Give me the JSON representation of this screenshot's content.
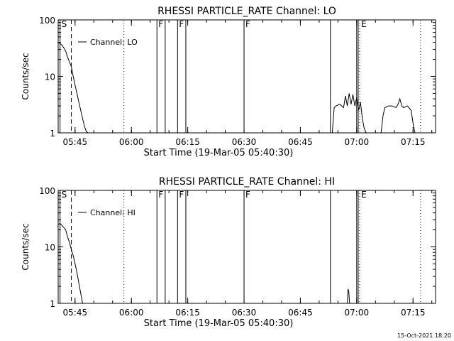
{
  "footer": {
    "timestamp": "15-Oct-2021 18:20"
  },
  "chart_data": [
    {
      "type": "line",
      "title": "RHESSI PARTICLE_RATE Channel: LO",
      "xlabel": "Start Time (19-Mar-05 05:40:30)",
      "ylabel": "Counts/sec",
      "yscale": "log",
      "ylim": [
        1,
        100
      ],
      "xlim": [
        "05:40:30",
        "07:21:00"
      ],
      "x_unit": "minutes after 05:40:30",
      "xticks": [
        "05:45",
        "06:00",
        "06:15",
        "06:30",
        "06:45",
        "07:00",
        "07:15"
      ],
      "yticks": [
        "1",
        "10",
        "100"
      ],
      "legend": "Channel: LO",
      "series": [
        {
          "name": "Channel: LO",
          "x": [
            0,
            0.5,
            1,
            1.5,
            2,
            2.5,
            3,
            3.5,
            4,
            4.5,
            5,
            5.5,
            6,
            6.5,
            7,
            7.5,
            8
          ],
          "y": [
            40,
            38,
            36,
            32,
            28,
            22,
            18,
            15,
            10,
            7,
            5,
            3.5,
            2.5,
            1.8,
            1.3,
            1.05,
            1
          ]
        },
        {
          "name": "Channel: LO",
          "x": [
            73,
            73.5,
            74,
            75,
            76,
            76.5,
            77,
            77.5,
            78,
            78.5,
            79,
            79.5,
            80,
            80.5,
            81,
            81.5,
            82
          ],
          "y": [
            1,
            2.8,
            3,
            3.2,
            2.8,
            4.5,
            3,
            5,
            3.2,
            4.8,
            3,
            4.2,
            2.5,
            3.5,
            1.8,
            1.2,
            1
          ]
        },
        {
          "name": "Channel: LO",
          "x": [
            86,
            86.5,
            87,
            88,
            89,
            90,
            90.5,
            91,
            91.5,
            92,
            93,
            94,
            94.5,
            95
          ],
          "y": [
            1,
            2,
            2.8,
            3,
            3,
            2.8,
            3.2,
            4,
            3,
            2.8,
            3,
            2.5,
            1.5,
            1
          ]
        }
      ],
      "markers": [
        {
          "label": "S",
          "x": 0.5,
          "style": "solid"
        },
        {
          "label": "",
          "x": 3.5,
          "style": "dashed"
        },
        {
          "label": "",
          "x": 17.5,
          "style": "dotted"
        },
        {
          "label": "F",
          "x": 26.3,
          "style": "solid"
        },
        {
          "label": "",
          "x": 28.5,
          "style": "solid"
        },
        {
          "label": "F",
          "x": 31.8,
          "style": "solid"
        },
        {
          "label": "",
          "x": 34.0,
          "style": "solid"
        },
        {
          "label": "F",
          "x": 49.5,
          "style": "solid"
        },
        {
          "label": "",
          "x": 72.5,
          "style": "solid"
        },
        {
          "label": "",
          "x": 79.5,
          "style": "solid"
        },
        {
          "label": "",
          "x": 79.9,
          "style": "solid"
        },
        {
          "label": "E",
          "x": 80.3,
          "style": "dotted"
        },
        {
          "label": "",
          "x": 96.5,
          "style": "dotted"
        }
      ]
    },
    {
      "type": "line",
      "title": "RHESSI PARTICLE_RATE Channel: HI",
      "xlabel": "Start Time (19-Mar-05 05:40:30)",
      "ylabel": "Counts/sec",
      "yscale": "log",
      "ylim": [
        1,
        100
      ],
      "xlim": [
        "05:40:30",
        "07:21:00"
      ],
      "x_unit": "minutes after 05:40:30",
      "xticks": [
        "05:45",
        "06:00",
        "06:15",
        "06:30",
        "06:45",
        "07:00",
        "07:15"
      ],
      "yticks": [
        "1",
        "10",
        "100"
      ],
      "legend": "Channel: HI",
      "series": [
        {
          "name": "Channel: HI",
          "x": [
            0,
            0.5,
            1,
            1.5,
            2,
            2.5,
            3,
            3.5,
            4,
            4.5,
            5,
            5.5,
            6,
            6.5
          ],
          "y": [
            25,
            26,
            24,
            22,
            20,
            15,
            12,
            9,
            7,
            5,
            3.5,
            2.3,
            1.5,
            1
          ]
        },
        {
          "name": "Channel: HI",
          "x": [
            77,
            77.2,
            77.4,
            77.6
          ],
          "y": [
            1,
            1.8,
            1.6,
            1
          ]
        }
      ],
      "markers": [
        {
          "label": "S",
          "x": 0.5,
          "style": "solid"
        },
        {
          "label": "",
          "x": 3.5,
          "style": "dashed"
        },
        {
          "label": "",
          "x": 17.5,
          "style": "dotted"
        },
        {
          "label": "F",
          "x": 26.3,
          "style": "solid"
        },
        {
          "label": "",
          "x": 28.5,
          "style": "solid"
        },
        {
          "label": "F",
          "x": 31.8,
          "style": "solid"
        },
        {
          "label": "",
          "x": 34.0,
          "style": "solid"
        },
        {
          "label": "F",
          "x": 49.5,
          "style": "solid"
        },
        {
          "label": "",
          "x": 72.5,
          "style": "solid"
        },
        {
          "label": "",
          "x": 79.5,
          "style": "solid"
        },
        {
          "label": "",
          "x": 79.9,
          "style": "solid"
        },
        {
          "label": "E",
          "x": 80.3,
          "style": "dotted"
        },
        {
          "label": "",
          "x": 96.5,
          "style": "dotted"
        }
      ]
    }
  ]
}
